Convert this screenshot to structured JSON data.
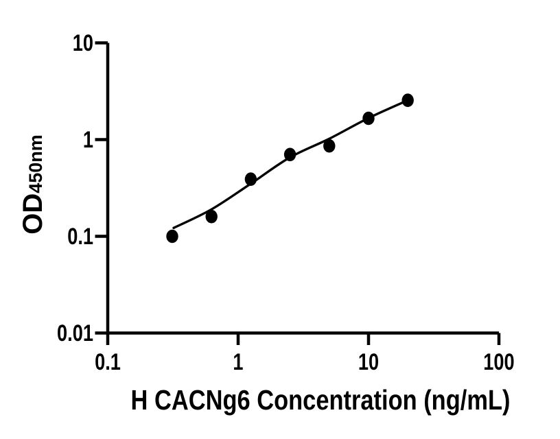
{
  "figure": {
    "background": "#ffffff"
  },
  "chart_data": {
    "type": "scatter",
    "title": "",
    "xlabel": "H CACNg6 Concentration (ng/mL)",
    "ylabel": "OD450nm",
    "ylabel_main": "OD",
    "ylabel_sub": "450nm",
    "x_scale": "log10",
    "y_scale": "log10",
    "xlim": [
      0.1,
      100
    ],
    "ylim": [
      0.01,
      10
    ],
    "grid": false,
    "legend_position": "none",
    "x_ticks": [
      {
        "value": 0.1,
        "label": "0.1"
      },
      {
        "value": 1,
        "label": "1"
      },
      {
        "value": 10,
        "label": "10"
      },
      {
        "value": 100,
        "label": "100"
      }
    ],
    "y_ticks": [
      {
        "value": 10,
        "label": "10"
      },
      {
        "value": 1,
        "label": "1"
      },
      {
        "value": 0.1,
        "label": "0.1"
      },
      {
        "value": 0.01,
        "label": "0.01"
      }
    ],
    "series": [
      {
        "marker": "filled-circle",
        "points": [
          {
            "x": 0.3125,
            "y": 0.1
          },
          {
            "x": 0.625,
            "y": 0.16
          },
          {
            "x": 1.25,
            "y": 0.39
          },
          {
            "x": 2.5,
            "y": 0.7
          },
          {
            "x": 5,
            "y": 0.86
          },
          {
            "x": 10,
            "y": 1.66
          },
          {
            "x": 20,
            "y": 2.55
          }
        ]
      }
    ],
    "fit_line": [
      {
        "x": 0.32,
        "y": 0.122
      },
      {
        "x": 0.625,
        "y": 0.19
      },
      {
        "x": 1.25,
        "y": 0.35
      },
      {
        "x": 2.5,
        "y": 0.655
      },
      {
        "x": 5,
        "y": 1.02
      },
      {
        "x": 10,
        "y": 1.67
      },
      {
        "x": 20,
        "y": 2.55
      }
    ],
    "colors": {
      "marker": "#000000",
      "line": "#000000",
      "axis": "#000000",
      "text": "#000000",
      "background": "#ffffff"
    }
  }
}
